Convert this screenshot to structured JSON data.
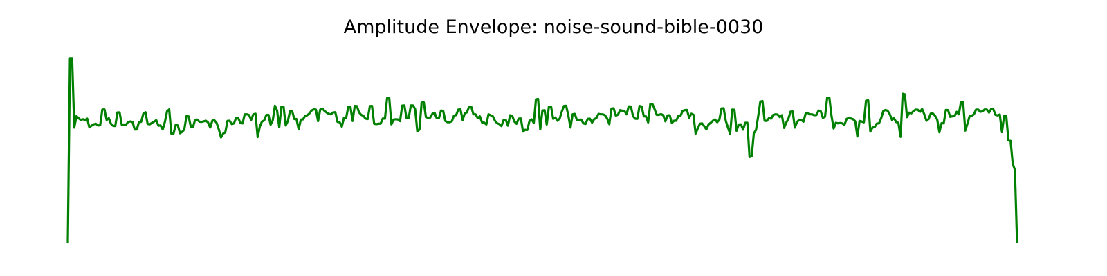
{
  "chart_data": {
    "type": "line",
    "title": "Amplitude Envelope: noise-sound-bible-0030",
    "xlabel": "",
    "ylabel": "",
    "axes_visible": false,
    "grid": false,
    "ylim": [
      0,
      1.0
    ],
    "color": "#008000",
    "series": [
      {
        "values": [
          0.0,
          0.975,
          0.975,
          0.61,
          0.67,
          0.66,
          0.65,
          0.654,
          0.65,
          0.657,
          0.611,
          0.62,
          0.627,
          0.63,
          0.621,
          0.622,
          0.705,
          0.706,
          0.65,
          0.66,
          0.63,
          0.619,
          0.618,
          0.69,
          0.69,
          0.625,
          0.626,
          0.625,
          0.64,
          0.642,
          0.64,
          0.6,
          0.6,
          0.64,
          0.64,
          0.683,
          0.691,
          0.629,
          0.627,
          0.635,
          0.641,
          0.649,
          0.62,
          0.621,
          0.6,
          0.64,
          0.696,
          0.706,
          0.578,
          0.578,
          0.624,
          0.621,
          0.58,
          0.587,
          0.6,
          0.67,
          0.669,
          0.615,
          0.612,
          0.651,
          0.652,
          0.641,
          0.64,
          0.643,
          0.646,
          0.637,
          0.61,
          0.647,
          0.648,
          0.634,
          0.6,
          0.558,
          0.578,
          0.585,
          0.645,
          0.646,
          0.628,
          0.632,
          0.661,
          0.66,
          0.635,
          0.632,
          0.68,
          0.68,
          0.676,
          0.651,
          0.68,
          0.683,
          0.56,
          0.615,
          0.642,
          0.647,
          0.676,
          0.677,
          0.625,
          0.648,
          0.725,
          0.7,
          0.612,
          0.72,
          0.72,
          0.621,
          0.645,
          0.697,
          0.697,
          0.655,
          0.655,
          0.601,
          0.652,
          0.653,
          0.672,
          0.675,
          0.685,
          0.7,
          0.706,
          0.705,
          0.644,
          0.705,
          0.71,
          0.698,
          0.689,
          0.682,
          0.68,
          0.69,
          0.691,
          0.64,
          0.638,
          0.615,
          0.662,
          0.66,
          0.72,
          0.72,
          0.645,
          0.724,
          0.723,
          0.69,
          0.677,
          0.672,
          0.657,
          0.655,
          0.723,
          0.724,
          0.63,
          0.628,
          0.63,
          0.631,
          0.658,
          0.657,
          0.765,
          0.766,
          0.627,
          0.652,
          0.654,
          0.653,
          0.644,
          0.726,
          0.727,
          0.66,
          0.659,
          0.727,
          0.727,
          0.707,
          0.59,
          0.599,
          0.742,
          0.743,
          0.665,
          0.662,
          0.663,
          0.683,
          0.688,
          0.659,
          0.659,
          0.7,
          0.698,
          0.645,
          0.638,
          0.638,
          0.643,
          0.673,
          0.676,
          0.705,
          0.706,
          0.65,
          0.685,
          0.69,
          0.72,
          0.72,
          0.68,
          0.68,
          0.66,
          0.669,
          0.637,
          0.636,
          0.626,
          0.68,
          0.675,
          0.67,
          0.646,
          0.633,
          0.628,
          0.618,
          0.65,
          0.651,
          0.62,
          0.675,
          0.672,
          0.642,
          0.63,
          0.657,
          0.658,
          0.589,
          0.598,
          0.597,
          0.645,
          0.653,
          0.634,
          0.759,
          0.761,
          0.601,
          0.7,
          0.702,
          0.626,
          0.72,
          0.721,
          0.656,
          0.663,
          0.646,
          0.658,
          0.695,
          0.724,
          0.725,
          0.674,
          0.61,
          0.68,
          0.682,
          0.65,
          0.651,
          0.652,
          0.632,
          0.629,
          0.656,
          0.657,
          0.636,
          0.655,
          0.66,
          0.682,
          0.68,
          0.68,
          0.675,
          0.658,
          0.628,
          0.71,
          0.712,
          0.673,
          0.678,
          0.702,
          0.699,
          0.698,
          0.68,
          0.722,
          0.721,
          0.67,
          0.657,
          0.656,
          0.724,
          0.721,
          0.669,
          0.669,
          0.637,
          0.734,
          0.734,
          0.707,
          0.677,
          0.677,
          0.681,
          0.675,
          0.643,
          0.674,
          0.675,
          0.634,
          0.646,
          0.646,
          0.671,
          0.672,
          0.698,
          0.702,
          0.703,
          0.662,
          0.683,
          0.678,
          0.578,
          0.605,
          0.63,
          0.632,
          0.617,
          0.6,
          0.626,
          0.635,
          0.646,
          0.653,
          0.638,
          0.651,
          0.711,
          0.712,
          0.645,
          0.61,
          0.577,
          0.705,
          0.704,
          0.593,
          0.626,
          0.627,
          0.599,
          0.635,
          0.635,
          0.455,
          0.459,
          0.58,
          0.597,
          0.669,
          0.747,
          0.75,
          0.646,
          0.645,
          0.66,
          0.657,
          0.677,
          0.68,
          0.679,
          0.665,
          0.675,
          0.608,
          0.636,
          0.656,
          0.694,
          0.695,
          0.61,
          0.639,
          0.651,
          0.65,
          0.641,
          0.684,
          0.688,
          0.68,
          0.68,
          0.675,
          0.676,
          0.7,
          0.696,
          0.661,
          0.667,
          0.768,
          0.768,
          0.671,
          0.605,
          0.635,
          0.632,
          0.634,
          0.632,
          0.624,
          0.656,
          0.66,
          0.658,
          0.654,
          0.643,
          0.563,
          0.645,
          0.642,
          0.638,
          0.752,
          0.754,
          0.589,
          0.61,
          0.612,
          0.631,
          0.632,
          0.659,
          0.697,
          0.703,
          0.699,
          0.681,
          0.651,
          0.659,
          0.639,
          0.635,
          0.561,
          0.788,
          0.785,
          0.665,
          0.689,
          0.685,
          0.697,
          0.705,
          0.704,
          0.693,
          0.708,
          0.68,
          0.646,
          0.655,
          0.684,
          0.684,
          0.672,
          0.652,
          0.585,
          0.633,
          0.632,
          0.703,
          0.702,
          0.667,
          0.669,
          0.67,
          0.693,
          0.68,
          0.745,
          0.745,
          0.594,
          0.63,
          0.67,
          0.672,
          0.68,
          0.705,
          0.705,
          0.693,
          0.696,
          0.706,
          0.705,
          0.689,
          0.708,
          0.707,
          0.677,
          0.674,
          0.679,
          0.586,
          0.671,
          0.671,
          0.542,
          0.54,
          0.418,
          0.387,
          0.0
        ]
      }
    ]
  }
}
